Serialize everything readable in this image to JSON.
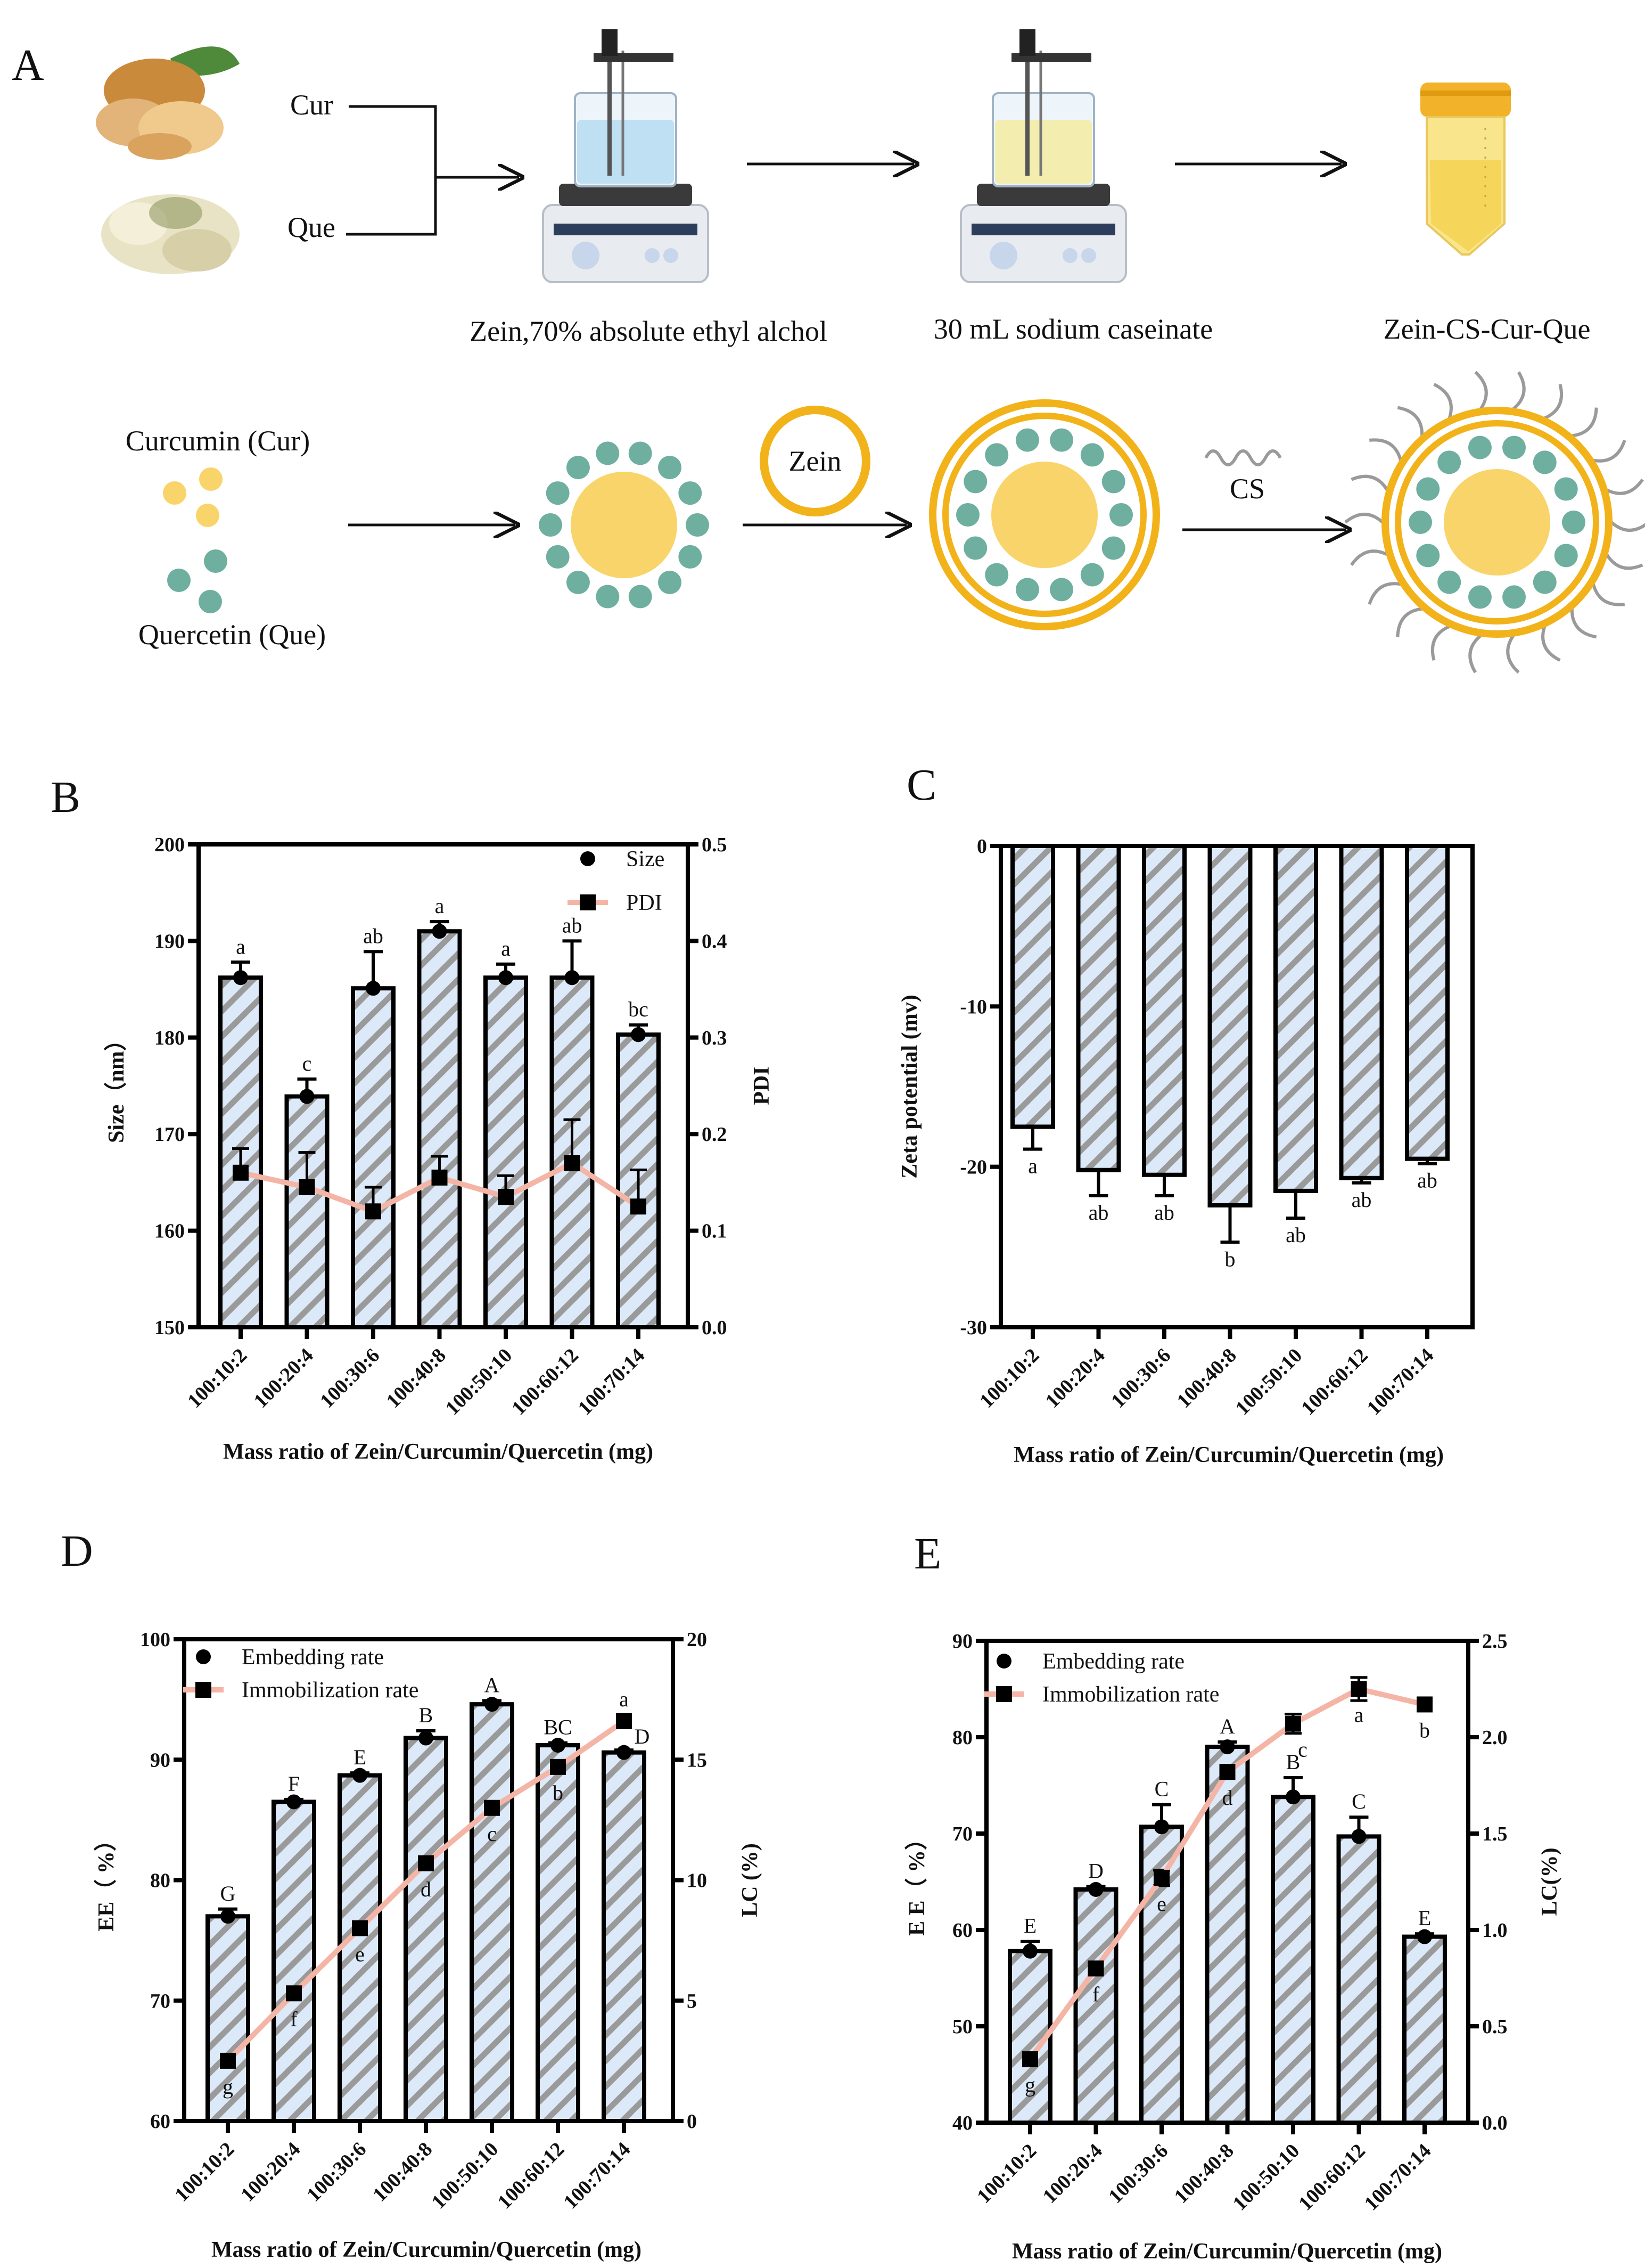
{
  "panel_a": {
    "label": "A",
    "inputs": [
      "Cur",
      "Que"
    ],
    "steps": [
      "Zein,70% absolute ethyl alchol",
      "30 mL sodium caseinate",
      "Zein-CS-Cur-Que"
    ],
    "curcumin_label": "Curcumin (Cur)",
    "quercetin_label": "Quercetin (Que)",
    "zein_label": "Zein",
    "cs_label": "CS",
    "colors": {
      "curcumin": "#f9d46a",
      "quercetin": "#6fafa0",
      "zein": "#f2b21a",
      "cs": "#9a9a9a"
    }
  },
  "chart_data": [
    {
      "panel": "B",
      "type": "bar+line",
      "categories": [
        "100:10:2",
        "100:20:4",
        "100:30:6",
        "100:40:8",
        "100:50:10",
        "100:60:12",
        "100:70:14"
      ],
      "xlabel": "Mass ratio of Zein/Curcumin/Quercetin (mg)",
      "ylabel": "Size（nm）",
      "y2label": "PDI",
      "ylim": [
        150,
        200
      ],
      "yticks": [
        "150",
        "160",
        "170",
        "180",
        "190",
        "200"
      ],
      "y2lim": [
        0,
        0.5
      ],
      "y2ticks": [
        "0.0",
        "0.1",
        "0.2",
        "0.3",
        "0.4",
        "0.5"
      ],
      "legend_position": "top-right",
      "series": [
        {
          "name": "Size",
          "kind": "bar",
          "axis": "left",
          "values": [
            186.2,
            173.9,
            185.1,
            191.0,
            186.2,
            186.2,
            180.3
          ],
          "errors": [
            1.6,
            1.8,
            3.8,
            1.0,
            1.4,
            3.8,
            1.0
          ],
          "letters": [
            "a",
            "c",
            "ab",
            "a",
            "a",
            "ab",
            "bc"
          ]
        },
        {
          "name": "PDI",
          "kind": "line",
          "axis": "right",
          "values": [
            0.16,
            0.145,
            0.12,
            0.155,
            0.135,
            0.17,
            0.125
          ],
          "errors": [
            0.025,
            0.036,
            0.025,
            0.022,
            0.022,
            0.045,
            0.038
          ],
          "letters": []
        }
      ]
    },
    {
      "panel": "C",
      "type": "bar",
      "categories": [
        "100:10:2",
        "100:20:4",
        "100:30:6",
        "100:40:8",
        "100:50:10",
        "100:60:12",
        "100:70:14"
      ],
      "xlabel": "Mass ratio of Zein/Curcumin/Quercetin (mg)",
      "ylabel": "Zeta potential (mv)",
      "ylim": [
        -30,
        0
      ],
      "yticks": [
        "-30",
        "-20",
        "-10",
        "0"
      ],
      "series": [
        {
          "kind": "bar",
          "axis": "left",
          "values": [
            -17.5,
            -20.2,
            -20.5,
            -22.4,
            -21.5,
            -20.7,
            -19.5
          ],
          "errors": [
            1.4,
            1.6,
            1.3,
            2.3,
            1.7,
            0.3,
            0.3
          ],
          "letters": [
            "a",
            "ab",
            "ab",
            "b",
            "ab",
            "ab",
            "ab"
          ]
        }
      ]
    },
    {
      "panel": "D",
      "type": "bar+line",
      "categories": [
        "100:10:2",
        "100:20:4",
        "100:30:6",
        "100:40:8",
        "100:50:10",
        "100:60:12",
        "100:70:14"
      ],
      "xlabel": "Mass ratio of Zein/Curcumin/Quercetin (mg)",
      "ylabel": "EE（ %）",
      "y2label": "LC (%)",
      "ylim": [
        60,
        100
      ],
      "yticks": [
        "60",
        "70",
        "80",
        "90",
        "100"
      ],
      "y2lim": [
        0,
        20
      ],
      "y2ticks": [
        "0",
        "5",
        "10",
        "15",
        "20"
      ],
      "legend_position": "top-left",
      "series": [
        {
          "name": "Embedding rate",
          "kind": "bar",
          "axis": "left",
          "values": [
            77.0,
            86.5,
            88.7,
            91.8,
            94.6,
            91.2,
            90.6
          ],
          "errors": [
            0.6,
            0.2,
            0.2,
            0.6,
            0.3,
            0.2,
            0.2
          ],
          "letters": [
            "G",
            "F",
            "E",
            "B",
            "A",
            "BC",
            "D"
          ]
        },
        {
          "name": "Immobilization rate",
          "kind": "line",
          "axis": "right",
          "values": [
            2.5,
            5.3,
            8.0,
            10.7,
            13.0,
            14.7,
            16.6
          ],
          "errors": [
            0,
            0,
            0,
            0,
            0,
            0,
            0
          ],
          "letters": [
            "g",
            "f",
            "e",
            "d",
            "c",
            "b",
            "a"
          ]
        }
      ]
    },
    {
      "panel": "E",
      "type": "bar+line",
      "categories": [
        "100:10:2",
        "100:20:4",
        "100:30:6",
        "100:40:8",
        "100:50:10",
        "100:60:12",
        "100:70:14"
      ],
      "xlabel": "Mass ratio of Zein/Curcumin/Quercetin (mg)",
      "ylabel": "E E（ %）",
      "y2label": "LC(%)",
      "ylim": [
        40,
        90
      ],
      "yticks": [
        "40",
        "50",
        "60",
        "70",
        "80",
        "90"
      ],
      "y2lim": [
        0,
        2.5
      ],
      "y2ticks": [
        "0.0",
        "0.5",
        "1.0",
        "1.5",
        "2.0",
        "2.5"
      ],
      "legend_position": "top-left",
      "series": [
        {
          "name": "Embedding rate",
          "kind": "bar",
          "axis": "left",
          "values": [
            57.8,
            64.2,
            70.7,
            79.0,
            73.8,
            69.7,
            59.3
          ],
          "errors": [
            1.0,
            0.3,
            2.3,
            0.5,
            2.0,
            2.0,
            0.3
          ],
          "letters": [
            "E",
            "D",
            "C",
            "A",
            "B",
            "C",
            "E"
          ]
        },
        {
          "name": "Immobilization rate",
          "kind": "line",
          "axis": "right",
          "values": [
            0.33,
            0.8,
            1.27,
            1.82,
            2.07,
            2.25,
            2.17
          ],
          "errors": [
            0,
            0,
            0.04,
            0,
            0.05,
            0.06,
            0
          ],
          "letters": [
            "g",
            "f",
            "e",
            "d",
            "c",
            "a",
            "b"
          ]
        }
      ]
    }
  ],
  "colors": {
    "bar_fill": "#dce9f8",
    "bar_hatch": "#9a9a9a",
    "line": "#f4b5a6",
    "axis": "#000000"
  }
}
